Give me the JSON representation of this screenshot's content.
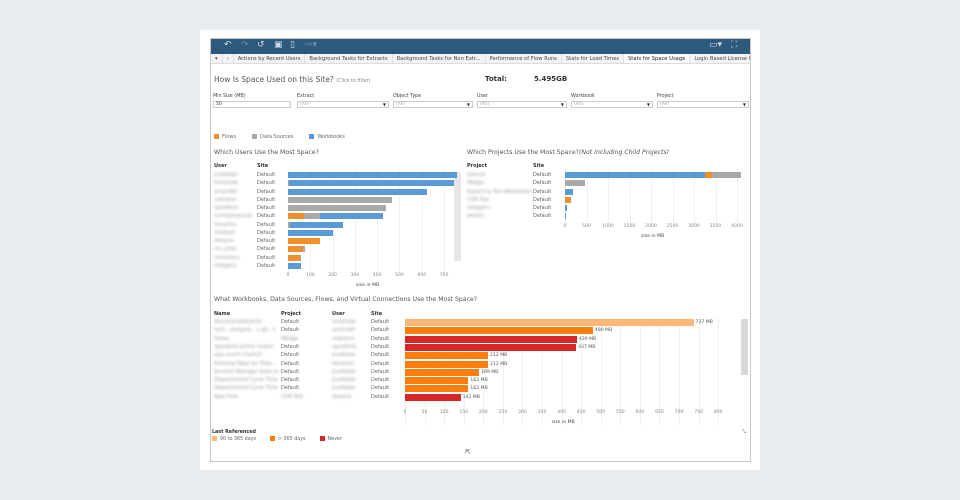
{
  "toolbar": {
    "icons": [
      "undo-icon",
      "redo-icon",
      "revert-icon",
      "pause-icon",
      "refresh-icon",
      "share-icon",
      "device-preview-icon",
      "fullscreen-icon"
    ]
  },
  "tabs": [
    "Actions by Recent Users",
    "Background Tasks for Extracts",
    "Background Tasks for Non Extr...",
    "Performance of Flow Runs",
    "Stats for Load Times",
    "Stats for Space Usage",
    "Login Based License Usage"
  ],
  "active_tab": "Stats for Space Usage",
  "header": {
    "title": "How Is Space Used on this Site?",
    "hint": "(Click to filter)",
    "total_label": "Total:",
    "total_value": "5.495GB"
  },
  "filters": [
    {
      "label": "Min Size (MB)",
      "value": "50"
    },
    {
      "label": "Extract",
      "value": "(All)"
    },
    {
      "label": "Object Type",
      "value": "(All)"
    },
    {
      "label": "User",
      "value": "(All)"
    },
    {
      "label": "Workbook",
      "value": "(All)"
    },
    {
      "label": "Project",
      "value": "(All)"
    }
  ],
  "legend_types": [
    {
      "label": "Flows",
      "color": "#f28e2b"
    },
    {
      "label": "Data Sources",
      "color": "#a9a9a9"
    },
    {
      "label": "Workbooks",
      "color": "#5b9bd5"
    }
  ],
  "chart_data": [
    {
      "type": "bar",
      "title": "Which Users Use the Most Space?",
      "stacked": true,
      "orientation": "horizontal",
      "columns": [
        "User",
        "Site"
      ],
      "categories": [
        "jruddolph",
        "hmatinde",
        "amandell",
        "mdodson",
        "rgoodlord",
        "northgroupuser",
        "tlevarton",
        "mhilbert",
        "dwayne",
        "svc_prep",
        "cmhatters",
        "mhiggins"
      ],
      "sites": [
        "Default",
        "Default",
        "Default",
        "Default",
        "Default",
        "Default",
        "Default",
        "Default",
        "Default",
        "Default",
        "Default",
        "Default"
      ],
      "series": [
        {
          "name": "Flows",
          "values": [
            0,
            0,
            0,
            0,
            0,
            70,
            0,
            0,
            145,
            68,
            55,
            0
          ]
        },
        {
          "name": "Data Sources",
          "values": [
            0,
            5,
            0,
            465,
            440,
            75,
            10,
            0,
            0,
            10,
            5,
            0
          ]
        },
        {
          "name": "Workbooks",
          "values": [
            760,
            740,
            625,
            0,
            0,
            282,
            235,
            203,
            0,
            0,
            0,
            58
          ]
        }
      ],
      "xlabel": "size in MB",
      "xlim": [
        0,
        760
      ],
      "xticks": [
        0,
        100,
        200,
        300,
        400,
        500,
        600,
        700
      ]
    },
    {
      "type": "bar",
      "title": "Which Projects Use the Most Space?",
      "subtitle": "(Not Including Child Projects)",
      "stacked": true,
      "orientation": "horizontal",
      "columns": [
        "Project",
        "Site"
      ],
      "categories": [
        "Default",
        "Wedge",
        "Exporting Test Workbooks",
        "CDR Test",
        "mhiggins",
        "jwilson"
      ],
      "sites": [
        "Default",
        "Default",
        "Default",
        "Default",
        "Default",
        "Default"
      ],
      "series": [
        {
          "name": "Workbooks",
          "values": [
            3250,
            0,
            180,
            0,
            50,
            25
          ]
        },
        {
          "name": "Flows",
          "values": [
            170,
            0,
            0,
            130,
            0,
            0
          ]
        },
        {
          "name": "Data Sources",
          "values": [
            680,
            460,
            0,
            0,
            0,
            0
          ]
        }
      ],
      "xlabel": "size in MB",
      "xlim": [
        0,
        4100
      ],
      "xticks": [
        0,
        500,
        1000,
        1500,
        2000,
        2500,
        3000,
        3500,
        4000
      ]
    },
    {
      "type": "bar",
      "title": "What Workbooks, Data Sources, Flows, and Virtual Connections Use the Most Space?",
      "orientation": "horizontal",
      "columns": [
        "Name",
        "Project",
        "User",
        "Site"
      ],
      "rows": [
        {
          "name": "dfxcomerladhybrid...",
          "project": "Default",
          "user": "hmatinde",
          "site": "Default",
          "value": 737,
          "label": "737 MB",
          "ref": "90 to 365 days"
        },
        {
          "name": "tech - postgres - 1 gb - 2",
          "project": "Default",
          "user": "amandell",
          "site": "Default",
          "value": 480,
          "label": "480 MB",
          "ref": "> 365 days"
        },
        {
          "name": "Demo",
          "project": "Wedge",
          "user": "mdodson",
          "site": "Default",
          "value": 439,
          "label": "439 MB",
          "ref": "Never"
        },
        {
          "name": "rgoodlord-airline output",
          "project": "Default",
          "user": "rgoodlord",
          "site": "Default",
          "value": 437,
          "label": "437 MB",
          "ref": "Never"
        },
        {
          "name": "ugly event chart(2)",
          "project": "Default",
          "user": "jruddolph",
          "site": "Default",
          "value": 212,
          "label": "212 MB",
          "ref": "> 365 days"
        },
        {
          "name": "Potential Reps for Filter...",
          "project": "Default",
          "user": "tlevarton",
          "site": "Default",
          "value": 212,
          "label": "212 MB",
          "ref": "> 365 days"
        },
        {
          "name": "Account Manager Sales A...",
          "project": "Default",
          "user": "jruddolph",
          "site": "Default",
          "value": 189,
          "label": "189 MB",
          "ref": "> 365 days"
        },
        {
          "name": "Departmental Cycle Time",
          "project": "Default",
          "user": "jruddolph",
          "site": "Default",
          "value": 162,
          "label": "162 MB",
          "ref": "> 365 days"
        },
        {
          "name": "Departmental Cycle Time",
          "project": "Default",
          "user": "jruddolph",
          "site": "Default",
          "value": 162,
          "label": "162 MB",
          "ref": "> 365 days"
        },
        {
          "name": "New Flow",
          "project": "CDR Test",
          "user": "dwayne",
          "site": "Default",
          "value": 142,
          "label": "142 MB",
          "ref": "Never"
        }
      ],
      "xlabel": "size in MB",
      "xlim": [
        0,
        820
      ],
      "xticks": [
        0,
        50,
        100,
        150,
        200,
        250,
        300,
        350,
        400,
        450,
        500,
        550,
        600,
        650,
        700,
        750,
        800
      ]
    }
  ],
  "legend_ref": {
    "title": "Last Referenced",
    "items": [
      {
        "label": "90 to 365 days",
        "color": "#ffb676"
      },
      {
        "label": "> 365 days",
        "color": "#ff7f0e"
      },
      {
        "label": "Never",
        "color": "#d62728"
      }
    ]
  }
}
